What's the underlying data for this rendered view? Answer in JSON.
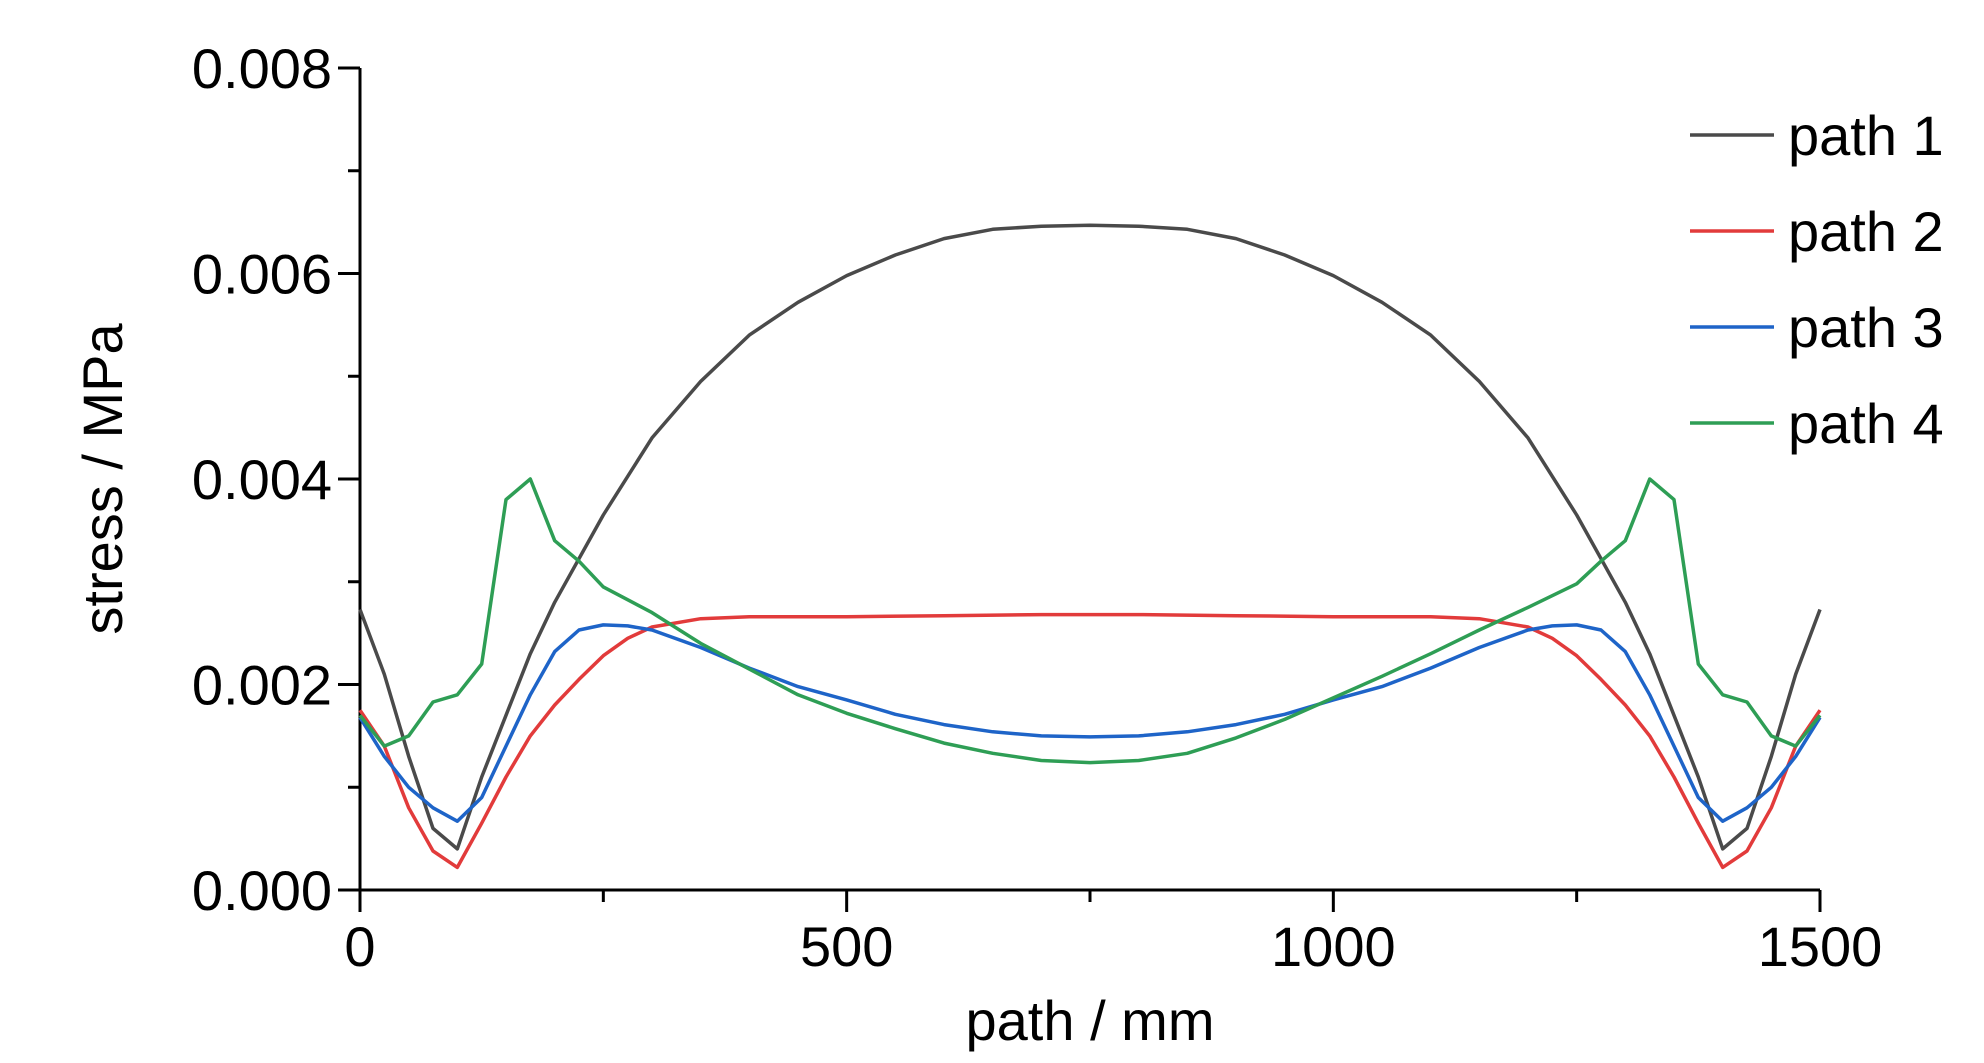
{
  "chart_data": {
    "type": "line",
    "xlabel": "path / mm",
    "ylabel": "stress / MPa",
    "xlim": [
      0,
      1500
    ],
    "ylim": [
      0,
      0.008
    ],
    "xticks": [
      0,
      500,
      1000,
      1500
    ],
    "xtick_labels": [
      "0",
      "500",
      "1000",
      "1500"
    ],
    "yticks": [
      0,
      0.002,
      0.004,
      0.006,
      0.008
    ],
    "ytick_labels": [
      "0.000",
      "0.002",
      "0.004",
      "0.006",
      "0.008"
    ],
    "grid": false,
    "legend_position": "top-right",
    "series": [
      {
        "name": "path 1",
        "color": "#4a4a4a",
        "x": [
          0,
          25,
          50,
          75,
          100,
          125,
          150,
          175,
          200,
          250,
          300,
          350,
          400,
          450,
          500,
          550,
          600,
          650,
          700,
          750,
          800,
          850,
          900,
          950,
          1000,
          1050,
          1100,
          1150,
          1200,
          1250,
          1300,
          1325,
          1350,
          1375,
          1400,
          1425,
          1450,
          1475,
          1500
        ],
        "y": [
          0.00273,
          0.0021,
          0.0013,
          0.0006,
          0.0004,
          0.0011,
          0.0017,
          0.0023,
          0.0028,
          0.00365,
          0.0044,
          0.00495,
          0.0054,
          0.00572,
          0.00598,
          0.00618,
          0.00634,
          0.00643,
          0.00646,
          0.00647,
          0.00646,
          0.00643,
          0.00634,
          0.00618,
          0.00598,
          0.00572,
          0.0054,
          0.00495,
          0.0044,
          0.00365,
          0.0028,
          0.0023,
          0.0017,
          0.0011,
          0.0004,
          0.0006,
          0.0013,
          0.0021,
          0.00273
        ]
      },
      {
        "name": "path 2",
        "color": "#e23b3b",
        "x": [
          0,
          25,
          50,
          75,
          100,
          125,
          150,
          175,
          200,
          225,
          250,
          275,
          300,
          350,
          400,
          500,
          600,
          700,
          750,
          800,
          900,
          1000,
          1100,
          1150,
          1200,
          1225,
          1250,
          1275,
          1300,
          1325,
          1350,
          1375,
          1400,
          1425,
          1450,
          1475,
          1500
        ],
        "y": [
          0.00175,
          0.0014,
          0.0008,
          0.00038,
          0.00022,
          0.00065,
          0.0011,
          0.0015,
          0.0018,
          0.00205,
          0.00228,
          0.00245,
          0.00256,
          0.00264,
          0.00266,
          0.00266,
          0.00267,
          0.00268,
          0.00268,
          0.00268,
          0.00267,
          0.00266,
          0.00266,
          0.00264,
          0.00256,
          0.00245,
          0.00228,
          0.00205,
          0.0018,
          0.0015,
          0.0011,
          0.00065,
          0.00022,
          0.00038,
          0.0008,
          0.0014,
          0.00175
        ]
      },
      {
        "name": "path 3",
        "color": "#1e64c8",
        "x": [
          0,
          25,
          50,
          75,
          100,
          125,
          150,
          175,
          200,
          225,
          250,
          275,
          300,
          350,
          400,
          450,
          500,
          550,
          600,
          650,
          700,
          750,
          800,
          850,
          900,
          950,
          1000,
          1050,
          1100,
          1150,
          1200,
          1225,
          1250,
          1275,
          1300,
          1325,
          1350,
          1375,
          1400,
          1425,
          1450,
          1475,
          1500
        ],
        "y": [
          0.00168,
          0.0013,
          0.001,
          0.0008,
          0.00067,
          0.0009,
          0.0014,
          0.0019,
          0.00232,
          0.00253,
          0.00258,
          0.00257,
          0.00253,
          0.00236,
          0.00216,
          0.00198,
          0.00185,
          0.00171,
          0.00161,
          0.00154,
          0.0015,
          0.00149,
          0.0015,
          0.00154,
          0.00161,
          0.00171,
          0.00185,
          0.00198,
          0.00216,
          0.00236,
          0.00253,
          0.00257,
          0.00258,
          0.00253,
          0.00232,
          0.0019,
          0.0014,
          0.0009,
          0.00067,
          0.0008,
          0.001,
          0.0013,
          0.00168
        ]
      },
      {
        "name": "path 4",
        "color": "#2e9e55",
        "x": [
          0,
          25,
          50,
          75,
          100,
          125,
          150,
          175,
          200,
          225,
          250,
          300,
          350,
          400,
          450,
          500,
          550,
          600,
          650,
          700,
          750,
          800,
          850,
          900,
          950,
          1000,
          1050,
          1100,
          1150,
          1200,
          1250,
          1275,
          1300,
          1325,
          1350,
          1375,
          1400,
          1425,
          1450,
          1475,
          1500
        ],
        "y": [
          0.0017,
          0.0014,
          0.0015,
          0.00183,
          0.0019,
          0.0022,
          0.0038,
          0.004,
          0.0034,
          0.0032,
          0.00295,
          0.0027,
          0.0024,
          0.00215,
          0.0019,
          0.00172,
          0.00157,
          0.00143,
          0.00133,
          0.00126,
          0.00124,
          0.00126,
          0.00133,
          0.00148,
          0.00166,
          0.00187,
          0.00208,
          0.0023,
          0.00253,
          0.00275,
          0.00298,
          0.0032,
          0.0034,
          0.004,
          0.0038,
          0.0022,
          0.0019,
          0.00183,
          0.0015,
          0.0014,
          0.0017
        ]
      }
    ]
  }
}
